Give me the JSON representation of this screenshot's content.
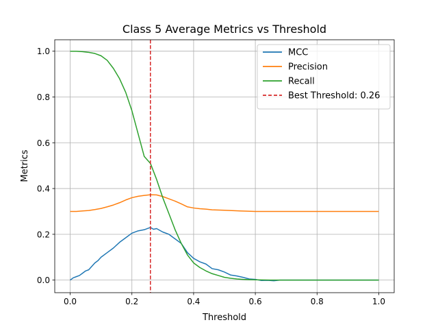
{
  "chart_data": {
    "type": "line",
    "title": "Class 5 Average Metrics vs Threshold",
    "xlabel": "Threshold",
    "ylabel": "Metrics",
    "xlim": [
      -0.05,
      1.05
    ],
    "ylim": [
      -0.055,
      1.05
    ],
    "xticks": [
      0.0,
      0.2,
      0.4,
      0.6,
      0.8,
      1.0
    ],
    "xtick_labels": [
      "0.0",
      "0.2",
      "0.4",
      "0.6",
      "0.8",
      "1.0"
    ],
    "yticks": [
      0.0,
      0.2,
      0.4,
      0.6,
      0.8,
      1.0
    ],
    "ytick_labels": [
      "0.0",
      "0.2",
      "0.4",
      "0.6",
      "0.8",
      "1.0"
    ],
    "grid": true,
    "legend_position": "top-right",
    "series": [
      {
        "name": "MCC",
        "color": "#1f77b4",
        "x": [
          0.0,
          0.01,
          0.02,
          0.03,
          0.04,
          0.05,
          0.06,
          0.07,
          0.08,
          0.09,
          0.1,
          0.12,
          0.14,
          0.16,
          0.18,
          0.2,
          0.22,
          0.24,
          0.26,
          0.27,
          0.28,
          0.3,
          0.32,
          0.34,
          0.36,
          0.38,
          0.4,
          0.42,
          0.44,
          0.46,
          0.48,
          0.5,
          0.52,
          0.54,
          0.56,
          0.58,
          0.6,
          0.62,
          0.64,
          0.66,
          0.68,
          0.7,
          0.75,
          0.8,
          0.85,
          0.9,
          0.95,
          1.0
        ],
        "y": [
          0.0,
          0.01,
          0.015,
          0.02,
          0.03,
          0.04,
          0.045,
          0.06,
          0.075,
          0.085,
          0.1,
          0.12,
          0.14,
          0.165,
          0.185,
          0.205,
          0.215,
          0.22,
          0.23,
          0.222,
          0.225,
          0.21,
          0.2,
          0.18,
          0.16,
          0.12,
          0.095,
          0.08,
          0.07,
          0.05,
          0.045,
          0.035,
          0.022,
          0.018,
          0.012,
          0.005,
          0.003,
          -0.002,
          -0.001,
          -0.003,
          0.0,
          0.0,
          0.0,
          0.0,
          0.0,
          0.0,
          0.0,
          0.0
        ]
      },
      {
        "name": "Precision",
        "color": "#ff7f0e",
        "x": [
          0.0,
          0.02,
          0.04,
          0.06,
          0.08,
          0.1,
          0.12,
          0.14,
          0.16,
          0.18,
          0.2,
          0.22,
          0.24,
          0.26,
          0.28,
          0.3,
          0.32,
          0.34,
          0.36,
          0.38,
          0.4,
          0.42,
          0.44,
          0.46,
          0.5,
          0.55,
          0.6,
          0.7,
          0.8,
          0.9,
          1.0
        ],
        "y": [
          0.3,
          0.3,
          0.302,
          0.304,
          0.308,
          0.313,
          0.32,
          0.328,
          0.338,
          0.35,
          0.36,
          0.366,
          0.37,
          0.373,
          0.372,
          0.365,
          0.355,
          0.345,
          0.333,
          0.32,
          0.315,
          0.312,
          0.31,
          0.307,
          0.305,
          0.302,
          0.3,
          0.3,
          0.3,
          0.3,
          0.3
        ]
      },
      {
        "name": "Recall",
        "color": "#2ca02c",
        "x": [
          0.0,
          0.02,
          0.04,
          0.06,
          0.08,
          0.1,
          0.12,
          0.14,
          0.16,
          0.18,
          0.2,
          0.22,
          0.24,
          0.26,
          0.28,
          0.3,
          0.32,
          0.34,
          0.36,
          0.38,
          0.4,
          0.42,
          0.44,
          0.46,
          0.48,
          0.5,
          0.52,
          0.54,
          0.56,
          0.58,
          0.6,
          0.65,
          0.7,
          0.8,
          0.9,
          1.0
        ],
        "y": [
          1.0,
          1.0,
          0.998,
          0.995,
          0.99,
          0.98,
          0.96,
          0.925,
          0.88,
          0.82,
          0.74,
          0.64,
          0.54,
          0.51,
          0.44,
          0.36,
          0.29,
          0.22,
          0.16,
          0.11,
          0.075,
          0.055,
          0.04,
          0.028,
          0.02,
          0.012,
          0.008,
          0.005,
          0.003,
          0.002,
          0.001,
          0.0,
          0.0,
          0.0,
          0.0,
          0.0
        ]
      }
    ],
    "threshold_line": {
      "name": "Best Threshold: 0.26",
      "x": 0.26,
      "color": "#d62728",
      "style": "dashed"
    }
  }
}
